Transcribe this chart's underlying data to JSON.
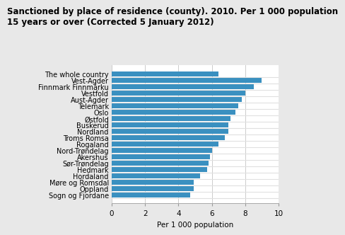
{
  "title_line1": "Sanctioned by place of residence (county). 2010. Per 1 000 population",
  "title_line2": "15 years or over (Corrected 5 January 2012)",
  "categories": [
    "Sogn og Fjordane",
    "Oppland",
    "Møre og Romsdal",
    "Hordaland",
    "Hedmark",
    "Sør-Trøndelag",
    "Akershus",
    "Nord-Trøndelag",
    "Rogaland",
    "Troms Romsa",
    "Nordland",
    "Buskerud",
    "Østfold",
    "Oslo",
    "Telemark",
    "Aust-Agder",
    "Vestfold",
    "Finnmark Finnmárku",
    "Vest-Agder",
    "The whole country"
  ],
  "values": [
    4.7,
    4.9,
    4.9,
    5.3,
    5.7,
    5.8,
    5.9,
    6.0,
    6.4,
    6.8,
    7.0,
    7.0,
    7.1,
    7.4,
    7.6,
    7.8,
    8.0,
    8.5,
    9.0,
    6.4
  ],
  "bar_color": "#3a90c0",
  "xlabel": "Per 1 000 population",
  "xlim": [
    0,
    10
  ],
  "xticks": [
    0,
    2,
    4,
    6,
    8,
    10
  ],
  "title_fontsize": 8.5,
  "label_fontsize": 7.0,
  "tick_fontsize": 7.5,
  "xlabel_fontsize": 7.5,
  "background_color": "#e8e8e8",
  "plot_background": "#ffffff",
  "grid_color": "#cccccc",
  "bar_gap_color": "#e0e0e0"
}
